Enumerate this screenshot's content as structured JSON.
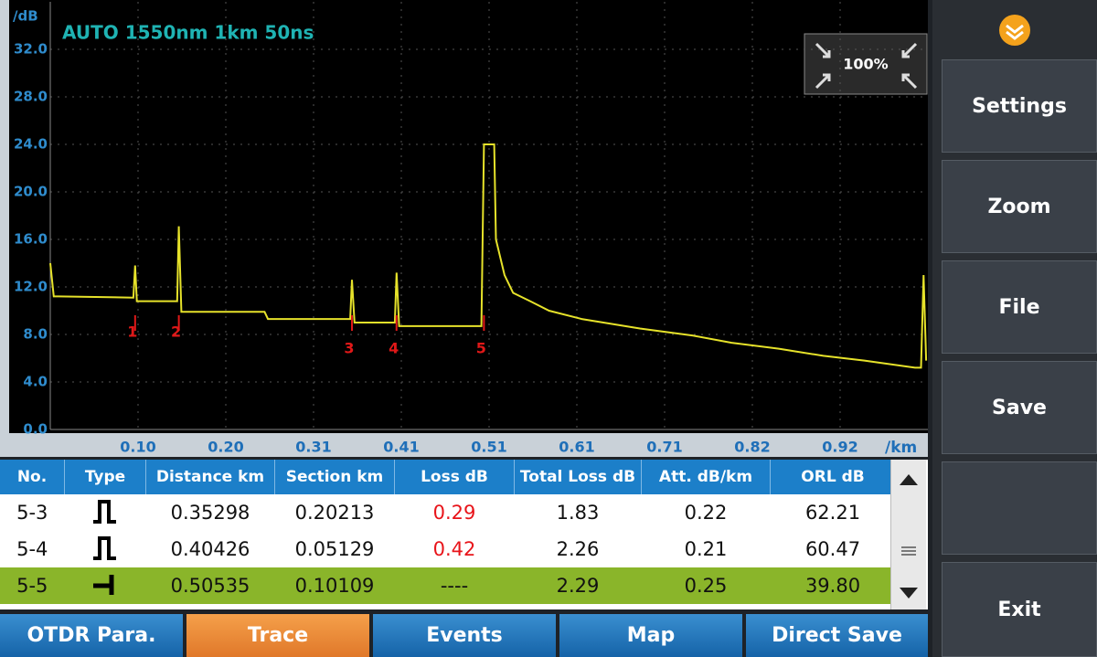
{
  "header": {
    "title": "AUTO 1550nm 1km 50ns",
    "zoom": "100%"
  },
  "chart_data": {
    "type": "line",
    "ylabel": "/dB",
    "xlabel": "/km",
    "color": "#e6e22a",
    "grid": true,
    "xlim": [
      0,
      1.024
    ],
    "ylim": [
      0,
      36
    ],
    "xticks": [
      {
        "value": 0.1024,
        "label": "0.10"
      },
      {
        "value": 0.2048,
        "label": "0.20"
      },
      {
        "value": 0.3072,
        "label": "0.31"
      },
      {
        "value": 0.4096,
        "label": "0.41"
      },
      {
        "value": 0.512,
        "label": "0.51"
      },
      {
        "value": 0.6144,
        "label": "0.61"
      },
      {
        "value": 0.7168,
        "label": "0.71"
      },
      {
        "value": 0.8192,
        "label": "0.82"
      },
      {
        "value": 0.9216,
        "label": "0.92"
      }
    ],
    "yticks": [
      {
        "value": 0,
        "label": "0.0"
      },
      {
        "value": 4,
        "label": "4.0"
      },
      {
        "value": 8,
        "label": "8.0"
      },
      {
        "value": 12,
        "label": "12.0"
      },
      {
        "value": 16,
        "label": "16.0"
      },
      {
        "value": 20,
        "label": "20.0"
      },
      {
        "value": 24,
        "label": "24.0"
      },
      {
        "value": 28,
        "label": "28.0"
      },
      {
        "value": 32,
        "label": "32.0"
      }
    ],
    "x": [
      0,
      0.004,
      0.01,
      0.097,
      0.099,
      0.101,
      0.148,
      0.15,
      0.153,
      0.25,
      0.254,
      0.35,
      0.352,
      0.355,
      0.402,
      0.404,
      0.407,
      0.503,
      0.506,
      0.508,
      0.518,
      0.52,
      0.53,
      0.54,
      0.56,
      0.582,
      0.62,
      0.688,
      0.75,
      0.795,
      0.85,
      0.902,
      0.95,
      1.009,
      1.016,
      1.019,
      1.022
    ],
    "values": [
      14,
      11.2,
      11.2,
      11.1,
      13.8,
      10.8,
      10.8,
      17.1,
      9.9,
      9.9,
      9.3,
      9.3,
      12.6,
      9.0,
      9.0,
      13.2,
      8.7,
      8.7,
      24,
      24,
      24,
      16,
      13,
      11.5,
      10.8,
      10,
      9.3,
      8.5,
      7.9,
      7.3,
      6.8,
      6.2,
      5.8,
      5.2,
      5.2,
      13,
      5.8
    ],
    "events": {
      "labels": [
        "1",
        "2",
        "3",
        "4",
        "5"
      ],
      "x": [
        0.099,
        0.15,
        0.352,
        0.404,
        0.506
      ]
    }
  },
  "table": {
    "header": [
      "No.",
      "Type",
      "Distance  km",
      "Section  km",
      "Loss  dB",
      "Total Loss  dB",
      "Att.  dB/km",
      "ORL  dB"
    ],
    "rows": [
      [
        "5-3",
        "",
        "0.35298",
        "0.20213",
        "0.29",
        "1.83",
        "0.22",
        "62.21"
      ],
      [
        "5-4",
        "",
        "0.40426",
        "0.05129",
        "0.42",
        "2.26",
        "0.21",
        "60.47"
      ],
      [
        "5-5",
        "",
        "0.50535",
        "0.10109",
        "----",
        "2.29",
        "0.25",
        "39.80"
      ]
    ]
  },
  "side": {
    "buttons": [
      "Settings",
      "Zoom",
      "File",
      "Save",
      "",
      "Exit"
    ]
  },
  "tabs": [
    "OTDR Para.",
    "Trace",
    "Events",
    "Map",
    "Direct Save"
  ]
}
